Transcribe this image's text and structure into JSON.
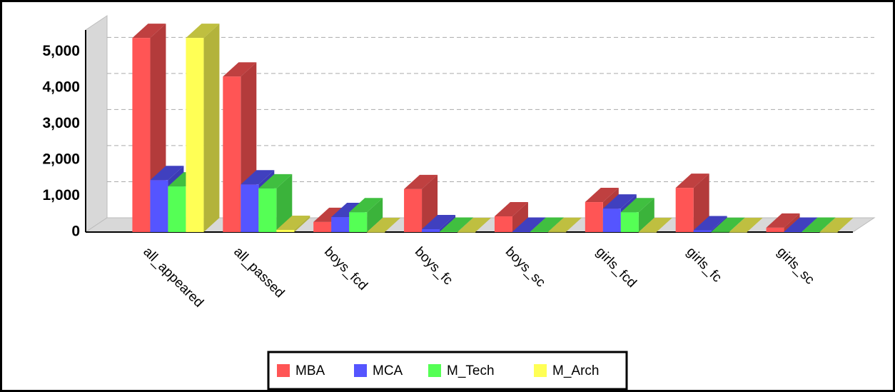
{
  "chart_data": {
    "type": "bar3d",
    "categories": [
      "all_appeared",
      "all_passed",
      "boys_fcd",
      "boys_fc",
      "boys_sc",
      "girls_fcd",
      "girls_fc",
      "girls_sc"
    ],
    "series": [
      {
        "name": "MBA",
        "color": "#ff5555",
        "values": [
          5380,
          4310,
          280,
          1190,
          435,
          830,
          1225,
          120
        ]
      },
      {
        "name": "MCA",
        "color": "#5555ff",
        "values": [
          1440,
          1320,
          415,
          80,
          10,
          650,
          50,
          10
        ]
      },
      {
        "name": "M_Tech",
        "color": "#55ff55",
        "values": [
          1265,
          1210,
          550,
          10,
          10,
          550,
          5,
          10
        ]
      },
      {
        "name": "M_Arch",
        "color": "#ffff55",
        "values": [
          5380,
          60,
          0,
          0,
          5,
          0,
          0,
          0
        ]
      }
    ],
    "ylim": [
      0,
      5600
    ],
    "yticks": [
      0,
      {
        "value": 1000,
        "label": "1,000"
      },
      {
        "value": 2000,
        "label": "2,000"
      },
      {
        "value": 3000,
        "label": "3,000"
      },
      {
        "value": 4000,
        "label": "4,000"
      },
      {
        "value": 5000,
        "label": "5,000"
      }
    ],
    "grid": true,
    "legend": "bottom"
  }
}
